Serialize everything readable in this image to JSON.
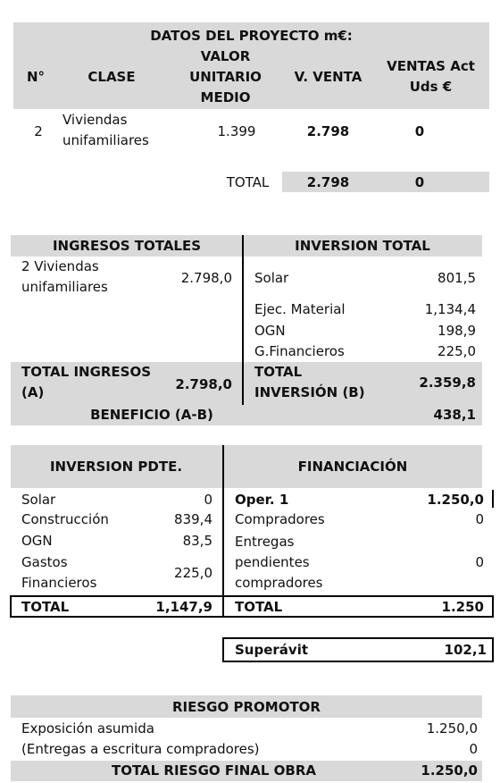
{
  "proyecto": {
    "title": "DATOS DEL PROYECTO m€:",
    "headers": [
      "N°",
      "CLASE",
      "VALOR UNITARIO MEDIO",
      "V. VENTA",
      "VENTAS Act Uds €"
    ],
    "row": {
      "n": "2",
      "clase": "Viviendas unifamiliares",
      "valor": "1.399",
      "venta": "2.798",
      "ventas_act": "0"
    },
    "total": {
      "label": "TOTAL",
      "venta": "2.798",
      "ventas_act": "0"
    }
  },
  "ingresos_inversion": {
    "headers": [
      "INGRESOS TOTALES",
      "INVERSION TOTAL"
    ],
    "ingresos": {
      "label": "2 Viviendas unifamiliares",
      "value": "2.798,0"
    },
    "inversion": [
      [
        "Solar",
        "801,5"
      ],
      [
        "Ejec. Material",
        "1,134,4"
      ],
      [
        "OGN",
        "198,9"
      ],
      [
        "G.Financieros",
        "225,0"
      ]
    ],
    "total_ingresos": {
      "label": "TOTAL INGRESOS (A)",
      "value": "2.798,0"
    },
    "total_inversion": {
      "label": "TOTAL INVERSIÓN (B)",
      "value": "2.359,8"
    },
    "beneficio": {
      "label": "BENEFICIO (A-B)",
      "value": "438,1"
    }
  },
  "pendiente": {
    "headers": [
      "INVERSION PDTE.",
      "FINANCIACIÓN"
    ],
    "inversion": [
      [
        "Solar",
        "0"
      ],
      [
        "Construcción",
        "839,4"
      ],
      [
        "OGN",
        "83,5"
      ],
      [
        "Gastos Financieros",
        "225,0"
      ]
    ],
    "financiacion": [
      [
        "Oper. 1",
        "1.250,0"
      ],
      [
        "Compradores",
        "0"
      ],
      [
        "Entregas pendientes compradores",
        "0"
      ]
    ],
    "total_inversion": {
      "label": "TOTAL",
      "value": "1,147,9"
    },
    "total_financiacion": {
      "label": "TOTAL",
      "value": "1.250"
    }
  },
  "superavit": {
    "label": "Superávit",
    "value": "102,1"
  },
  "riesgo": {
    "title": "RIESGO PROMOTOR",
    "rows": [
      [
        "Exposición asumida",
        "1.250,0"
      ],
      [
        "(Entregas a escritura compradores)",
        "0"
      ]
    ],
    "total": {
      "label": "TOTAL RIESGO FINAL OBRA",
      "value": "1.250,0"
    }
  }
}
